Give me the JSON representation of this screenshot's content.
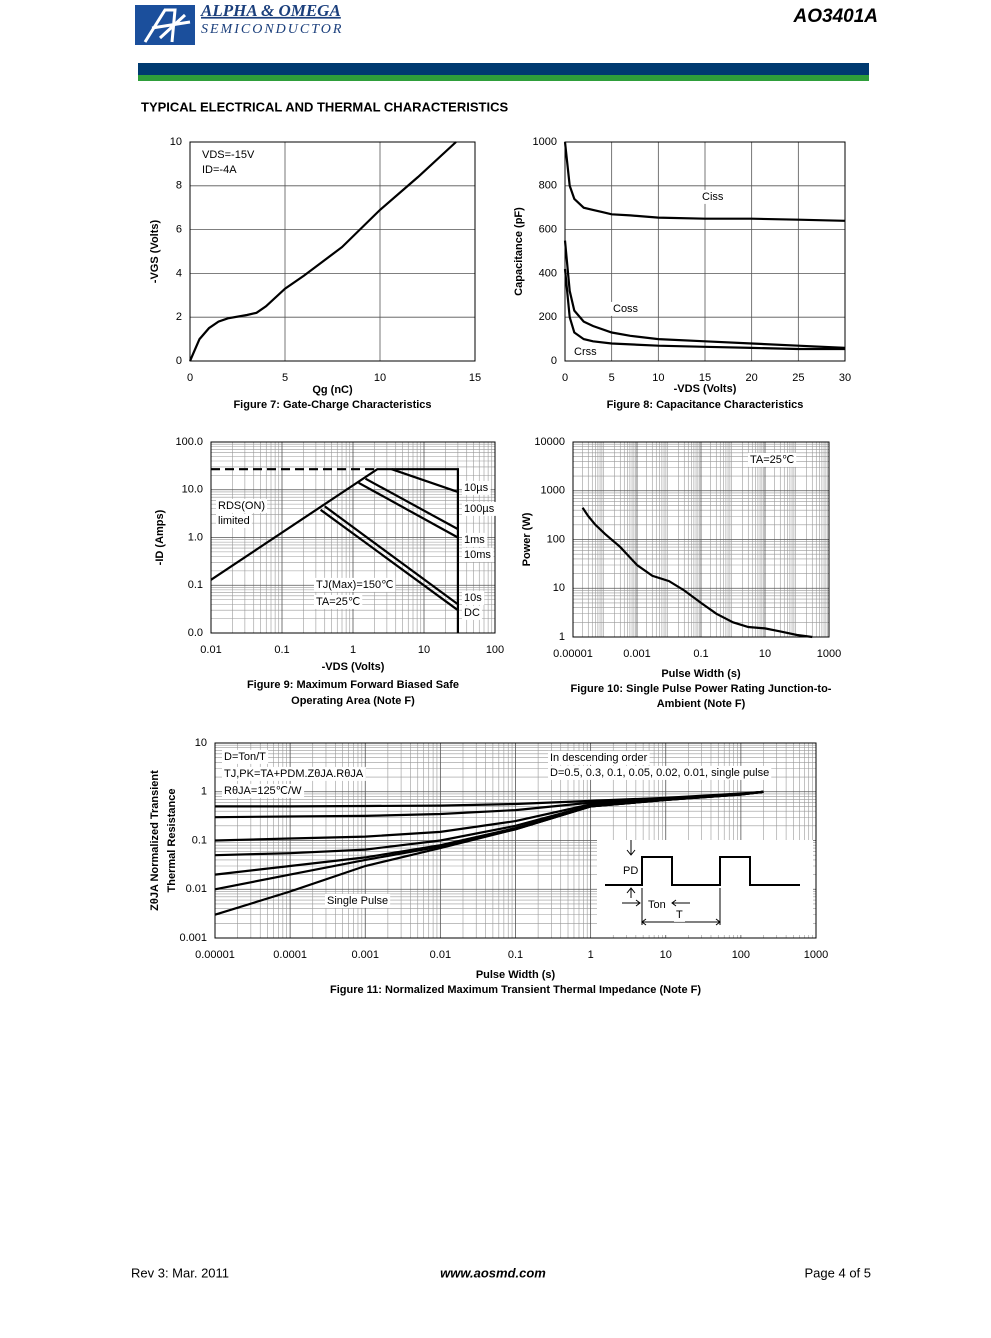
{
  "header": {
    "company": "ALPHA & OMEGA",
    "division": "SEMICONDUCTOR",
    "part": "AO3401A"
  },
  "section_title": "TYPICAL ELECTRICAL AND THERMAL CHARACTERISTICS",
  "chart_data": [
    {
      "type": "line",
      "title": [
        "Figure 7: Gate-Charge Characteristics"
      ],
      "xlabel": "Qg (nC)",
      "ylabel": [
        "-VGS (Volts)"
      ],
      "xlim": [
        0,
        15
      ],
      "ylim": [
        0,
        10
      ],
      "xticks": [
        0,
        5,
        10,
        15
      ],
      "yticks": [
        0,
        2,
        4,
        6,
        8,
        10
      ],
      "grid": true,
      "annotations": [
        "VDS=-15V",
        "ID=-4A"
      ],
      "series": [
        {
          "color": "#000000",
          "x": [
            0,
            0.5,
            1,
            1.5,
            2,
            3,
            3.5,
            4,
            5,
            6,
            8,
            10,
            12,
            14
          ],
          "values": [
            0,
            1,
            1.5,
            1.8,
            1.95,
            2.1,
            2.2,
            2.5,
            3.3,
            3.9,
            5.2,
            6.9,
            8.4,
            10
          ]
        }
      ]
    },
    {
      "type": "line",
      "title": [
        "Figure 8: Capacitance Characteristics"
      ],
      "xlabel": "-VDS (Volts)",
      "ylabel": [
        "Capacitance (pF)"
      ],
      "xlim": [
        0,
        30
      ],
      "ylim": [
        0,
        1000
      ],
      "xticks": [
        0,
        5,
        10,
        15,
        20,
        25,
        30
      ],
      "yticks": [
        0,
        200,
        400,
        600,
        800,
        1000
      ],
      "grid": true,
      "annotations": [],
      "series": [
        {
          "name": "Ciss",
          "color": "#000000",
          "x": [
            0,
            0.5,
            1,
            2,
            3,
            4,
            5,
            7,
            10,
            15,
            20,
            25,
            30
          ],
          "values": [
            1000,
            800,
            740,
            700,
            690,
            680,
            670,
            665,
            655,
            650,
            650,
            645,
            640
          ]
        },
        {
          "name": "Coss",
          "color": "#000000",
          "x": [
            0,
            0.5,
            1,
            2,
            3,
            5,
            7,
            10,
            15,
            20,
            25,
            30
          ],
          "values": [
            550,
            320,
            230,
            180,
            160,
            130,
            115,
            100,
            90,
            80,
            70,
            60
          ]
        },
        {
          "name": "Crss",
          "color": "#000000",
          "x": [
            0,
            0.5,
            1,
            2,
            3,
            5,
            10,
            15,
            20,
            25,
            30
          ],
          "values": [
            420,
            200,
            130,
            100,
            90,
            80,
            70,
            65,
            60,
            55,
            55
          ]
        }
      ]
    },
    {
      "type": "line",
      "title": [
        "Figure 9: Maximum Forward Biased Safe",
        "Operating Area (Note F)"
      ],
      "xlabel": "-VDS (Volts)",
      "ylabel": [
        "-ID (Amps)"
      ],
      "xscale": "log",
      "yscale": "log",
      "xlim": [
        0.01,
        100
      ],
      "ylim": [
        0.01,
        100
      ],
      "xticks": [
        0.01,
        0.1,
        1,
        10,
        100
      ],
      "yticks": [
        {
          "value": 0.01,
          "label": "0.0"
        },
        {
          "value": 0.1,
          "label": "0.1"
        },
        {
          "value": 1,
          "label": "1.0"
        },
        {
          "value": 10,
          "label": "10.0"
        },
        {
          "value": 100,
          "label": "100.0"
        }
      ],
      "grid": true,
      "annotations": [
        "RDS(ON)",
        "limited",
        "TJ(Max)=150℃",
        "TA=25℃"
      ],
      "series": [
        {
          "name": "10µs",
          "color": "#000000",
          "x": [
            0.01,
            2.2,
            30,
            30
          ],
          "values": [
            0.13,
            27,
            27,
            0.01
          ]
        },
        {
          "name": "100µs",
          "color": "#000000",
          "x": [
            3.5,
            30
          ],
          "values": [
            27,
            9
          ]
        },
        {
          "name": "1ms",
          "color": "#000000",
          "x": [
            1.5,
            30
          ],
          "values": [
            17,
            1.5
          ]
        },
        {
          "name": "10ms",
          "color": "#000000",
          "x": [
            1.2,
            30
          ],
          "values": [
            14,
            1
          ]
        },
        {
          "name": "10s",
          "color": "#000000",
          "x": [
            0.4,
            30
          ],
          "values": [
            4.5,
            0.04
          ]
        },
        {
          "name": "DC",
          "color": "#000000",
          "x": [
            0.35,
            30
          ],
          "values": [
            3.8,
            0.03
          ]
        },
        {
          "color": "#000000",
          "dash": true,
          "x": [
            0.01,
            2.2
          ],
          "values": [
            27,
            27
          ]
        }
      ]
    },
    {
      "type": "line",
      "title": [
        "Figure 10: Single Pulse Power Rating Junction-to-",
        "Ambient (Note F)"
      ],
      "xlabel": "Pulse Width (s)",
      "ylabel": [
        "Power (W)"
      ],
      "xscale": "log",
      "yscale": "log",
      "xlim": [
        1e-05,
        1000
      ],
      "ylim": [
        1,
        10000
      ],
      "xticks": [
        1e-05,
        0.001,
        0.1,
        10,
        1000
      ],
      "yticks": [
        1,
        10,
        100,
        1000,
        10000
      ],
      "grid": true,
      "annotations": [
        "TA=25℃"
      ],
      "series": [
        {
          "color": "#000000",
          "x": [
            2e-05,
            3e-05,
            5e-05,
            0.0001,
            0.0003,
            0.001,
            0.003,
            0.01,
            0.03,
            0.1,
            0.3,
            1,
            3,
            10,
            30,
            100,
            300
          ],
          "values": [
            450,
            300,
            200,
            130,
            70,
            30,
            18,
            14,
            9,
            5,
            3,
            2,
            1.6,
            1.5,
            1.3,
            1.1,
            1
          ]
        }
      ]
    },
    {
      "type": "line",
      "title": [
        "Figure 11: Normalized Maximum Transient Thermal Impedance (Note F)"
      ],
      "xlabel": "Pulse Width (s)",
      "ylabel": [
        "ZθJA Normalized Transient",
        "Thermal Resistance"
      ],
      "xscale": "log",
      "yscale": "log",
      "xlim": [
        1e-05,
        1000
      ],
      "ylim": [
        0.001,
        10
      ],
      "xticks": [
        1e-05,
        0.0001,
        0.001,
        0.01,
        0.1,
        1,
        10,
        100,
        1000
      ],
      "yticks": [
        0.001,
        0.01,
        0.1,
        1,
        10
      ],
      "grid": true,
      "annotations": [
        "D=Ton/T",
        "TJ,PK=TA+PDM.ZθJA.RθJA",
        "RθJA=125℃/W",
        "In descending order",
        "D=0.5, 0.3, 0.1, 0.05, 0.02, 0.01, single pulse",
        "Single Pulse",
        "PD",
        "Ton",
        "T"
      ],
      "series": [
        {
          "color": "#000000",
          "x": [
            1e-05,
            0.0001,
            0.001,
            0.01,
            0.1,
            1,
            10,
            100,
            200
          ],
          "values": [
            0.5,
            0.5,
            0.51,
            0.52,
            0.56,
            0.65,
            0.75,
            0.92,
            1
          ]
        },
        {
          "color": "#000000",
          "x": [
            1e-05,
            0.0001,
            0.001,
            0.01,
            0.1,
            1,
            10,
            100,
            200
          ],
          "values": [
            0.3,
            0.31,
            0.32,
            0.35,
            0.42,
            0.6,
            0.72,
            0.9,
            1
          ]
        },
        {
          "color": "#000000",
          "x": [
            1e-05,
            0.0001,
            0.001,
            0.01,
            0.1,
            1,
            10,
            100,
            200
          ],
          "values": [
            0.1,
            0.11,
            0.12,
            0.15,
            0.25,
            0.55,
            0.7,
            0.9,
            1
          ]
        },
        {
          "color": "#000000",
          "x": [
            1e-05,
            0.0001,
            0.001,
            0.01,
            0.1,
            1,
            10,
            100,
            200
          ],
          "values": [
            0.05,
            0.055,
            0.065,
            0.1,
            0.2,
            0.52,
            0.7,
            0.9,
            1
          ]
        },
        {
          "color": "#000000",
          "x": [
            1e-05,
            0.0001,
            0.001,
            0.01,
            0.1,
            1,
            10,
            100,
            200
          ],
          "values": [
            0.02,
            0.03,
            0.045,
            0.08,
            0.18,
            0.5,
            0.68,
            0.88,
            1
          ]
        },
        {
          "color": "#000000",
          "x": [
            1e-05,
            0.0001,
            0.001,
            0.01,
            0.1,
            1,
            10,
            100,
            200
          ],
          "values": [
            0.01,
            0.02,
            0.04,
            0.075,
            0.17,
            0.5,
            0.68,
            0.88,
            1
          ]
        },
        {
          "color": "#000000",
          "x": [
            1e-05,
            0.0001,
            0.001,
            0.01,
            0.1,
            1,
            10,
            100,
            200
          ],
          "values": [
            0.003,
            0.009,
            0.03,
            0.07,
            0.17,
            0.5,
            0.68,
            0.88,
            1
          ]
        }
      ]
    }
  ],
  "footer": {
    "revision": "Rev 3: Mar. 2011",
    "website": "www.aosmd.com",
    "page": "Page 4 of 5"
  }
}
